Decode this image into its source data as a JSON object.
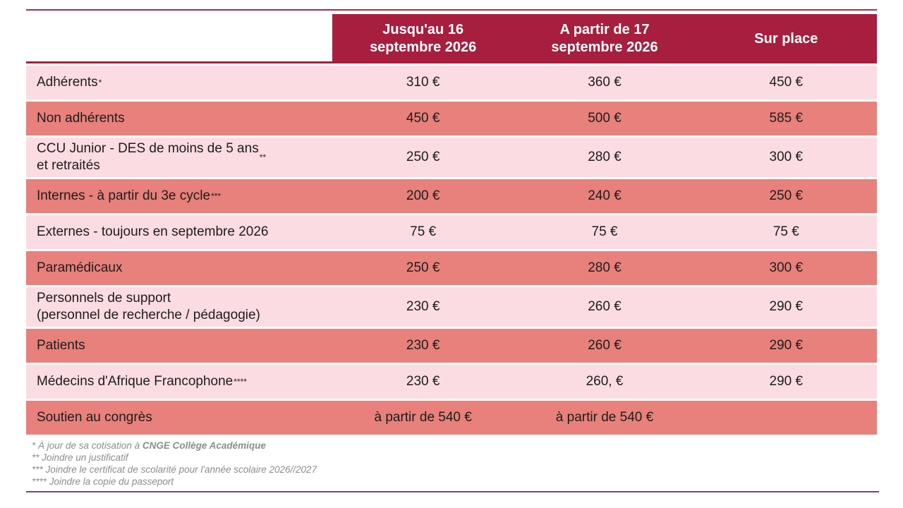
{
  "table": {
    "headers": [
      "Jusqu'au 16\nseptembre 2026",
      "A partir de 17\nseptembre 2026",
      "Sur place"
    ],
    "rows": [
      {
        "label": "Adhérents",
        "sup": "*",
        "values": [
          "310 €",
          "360 €",
          "450 €"
        ]
      },
      {
        "label": "Non adhérents",
        "sup": "",
        "values": [
          "450 €",
          "500 €",
          "585 €"
        ]
      },
      {
        "label": "CCU Junior - DES de moins de 5 ans\net retraités",
        "sup": "**",
        "values": [
          "250 €",
          "280 €",
          "300 €"
        ]
      },
      {
        "label": "Internes - à partir du 3e cycle",
        "sup": "***",
        "values": [
          "200 €",
          "240 €",
          "250 €"
        ]
      },
      {
        "label": "Externes - toujours en septembre 2026",
        "sup": "",
        "values": [
          "75 €",
          "75 €",
          "75 €"
        ]
      },
      {
        "label": "Paramédicaux",
        "sup": "",
        "values": [
          "250 €",
          "280 €",
          "300 €"
        ]
      },
      {
        "label": "Personnels de support\n(personnel de recherche / pédagogie)",
        "sup": "",
        "values": [
          "230 €",
          "260 €",
          "290 €"
        ]
      },
      {
        "label": "Patients",
        "sup": "",
        "values": [
          "230 €",
          "260 €",
          "290 €"
        ]
      },
      {
        "label": "Médecins d'Afrique Francophone",
        "sup": "****",
        "values": [
          "230 €",
          "260, €",
          "290 €"
        ]
      },
      {
        "label": "Soutien au congrès",
        "sup": "",
        "values": [
          "à partir de 540 €",
          "à partir de 540 €",
          ""
        ]
      }
    ]
  },
  "footnotes": [
    {
      "text": "* À jour de sa cotisation à ",
      "bold": "CNGE Collège Académique"
    },
    {
      "text": "** Joindre un justificatif",
      "bold": ""
    },
    {
      "text": "*** Joindre le certificat de scolarité pour l'année scolaire 2026//2027",
      "bold": ""
    },
    {
      "text": "**** Joindre la copie du passeport",
      "bold": ""
    }
  ],
  "colors": {
    "header_red": "#A71E3E",
    "row_pink": "#FBDCE2",
    "row_salmon": "#E8807B",
    "top_rule": "#A72C46",
    "bottom_rule": "#7B4373",
    "footnote_gray": "#8C8C8C"
  }
}
